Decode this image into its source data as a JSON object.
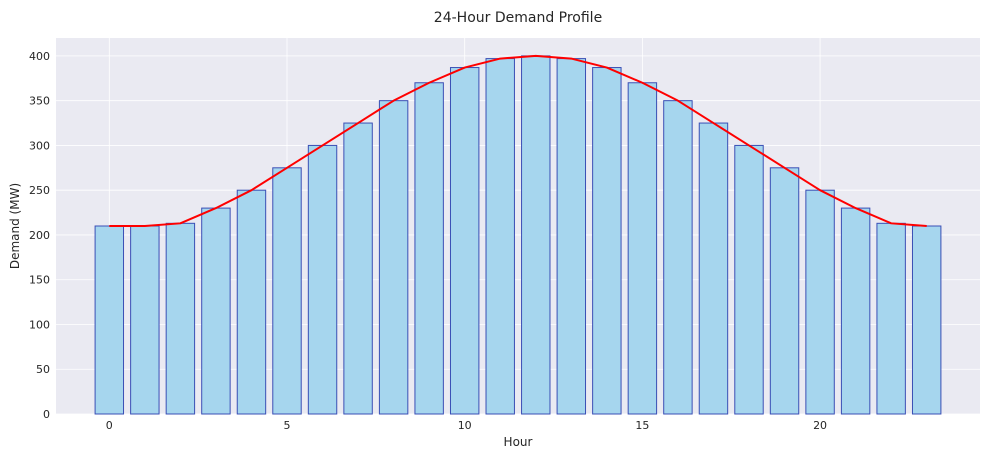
{
  "chart_data": {
    "type": "bar",
    "title": "24-Hour Demand Profile",
    "xlabel": "Hour",
    "ylabel": "Demand (MW)",
    "x": [
      0,
      1,
      2,
      3,
      4,
      5,
      6,
      7,
      8,
      9,
      10,
      11,
      12,
      13,
      14,
      15,
      16,
      17,
      18,
      19,
      20,
      21,
      22,
      23
    ],
    "values": [
      210,
      210,
      213,
      230,
      250,
      275,
      300,
      325,
      350,
      370,
      387,
      397,
      400,
      397,
      387,
      370,
      350,
      325,
      300,
      275,
      250,
      230,
      213,
      210
    ],
    "line_series": {
      "type": "line",
      "values": [
        210,
        210,
        213,
        230,
        250,
        275,
        300,
        325,
        350,
        370,
        387,
        397,
        400,
        397,
        387,
        370,
        350,
        325,
        300,
        275,
        250,
        230,
        213,
        210
      ]
    },
    "xlim": [
      -1.5,
      24.5
    ],
    "ylim": [
      0,
      420
    ],
    "xticks": [
      0,
      5,
      10,
      15,
      20
    ],
    "yticks": [
      0,
      50,
      100,
      150,
      200,
      250,
      300,
      350,
      400
    ],
    "grid": true,
    "legend": "none",
    "colors": {
      "background": "#eaeaf2",
      "grid": "#ffffff",
      "bar_fill": "#a6d6ee",
      "bar_edge": "#3a4fb5",
      "line": "#ff0000",
      "text": "#262626"
    }
  }
}
